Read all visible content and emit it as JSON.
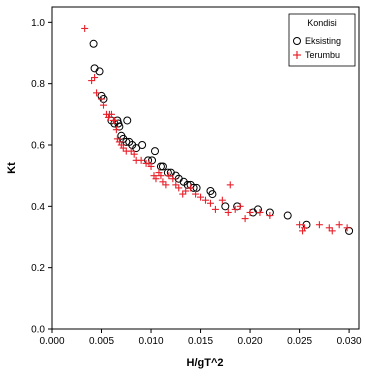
{
  "chart_data": {
    "type": "scatter",
    "title": "",
    "xlabel": "H/gT^2",
    "ylabel": "Kt",
    "xlim": [
      0.0,
      0.031
    ],
    "ylim": [
      0.0,
      1.05
    ],
    "x_ticks": [
      "0.000",
      "0.005",
      "0.010",
      "0.015",
      "0.020",
      "0.025",
      "0.030"
    ],
    "y_ticks": [
      "0.0",
      "0.2",
      "0.4",
      "0.6",
      "0.8",
      "1.0"
    ],
    "grid": false,
    "legend": {
      "title": "Kondisi",
      "position": "top-right"
    },
    "series": [
      {
        "name": "Eksisting",
        "marker": "open-circle",
        "color": "#000000",
        "points": [
          [
            0.0042,
            0.93
          ],
          [
            0.0043,
            0.85
          ],
          [
            0.0048,
            0.84
          ],
          [
            0.005,
            0.76
          ],
          [
            0.0052,
            0.75
          ],
          [
            0.006,
            0.68
          ],
          [
            0.0063,
            0.67
          ],
          [
            0.0066,
            0.68
          ],
          [
            0.0067,
            0.67
          ],
          [
            0.0068,
            0.66
          ],
          [
            0.007,
            0.63
          ],
          [
            0.0072,
            0.62
          ],
          [
            0.0075,
            0.61
          ],
          [
            0.0076,
            0.68
          ],
          [
            0.0078,
            0.61
          ],
          [
            0.0081,
            0.6
          ],
          [
            0.0085,
            0.59
          ],
          [
            0.0091,
            0.6
          ],
          [
            0.0097,
            0.55
          ],
          [
            0.0101,
            0.55
          ],
          [
            0.0104,
            0.58
          ],
          [
            0.011,
            0.53
          ],
          [
            0.0112,
            0.53
          ],
          [
            0.0117,
            0.51
          ],
          [
            0.012,
            0.51
          ],
          [
            0.0125,
            0.5
          ],
          [
            0.0128,
            0.49
          ],
          [
            0.0133,
            0.48
          ],
          [
            0.0137,
            0.47
          ],
          [
            0.014,
            0.47
          ],
          [
            0.0143,
            0.46
          ],
          [
            0.0146,
            0.46
          ],
          [
            0.016,
            0.45
          ],
          [
            0.0162,
            0.44
          ],
          [
            0.0175,
            0.4
          ],
          [
            0.0187,
            0.4
          ],
          [
            0.0203,
            0.38
          ],
          [
            0.0208,
            0.39
          ],
          [
            0.022,
            0.38
          ],
          [
            0.0238,
            0.37
          ],
          [
            0.0257,
            0.34
          ],
          [
            0.03,
            0.32
          ]
        ]
      },
      {
        "name": "Terumbu",
        "marker": "plus",
        "color": "#e8202a",
        "points": [
          [
            0.0033,
            0.98
          ],
          [
            0.004,
            0.81
          ],
          [
            0.0043,
            0.82
          ],
          [
            0.0045,
            0.77
          ],
          [
            0.005,
            0.75
          ],
          [
            0.0052,
            0.73
          ],
          [
            0.0055,
            0.7
          ],
          [
            0.0057,
            0.69
          ],
          [
            0.0058,
            0.7
          ],
          [
            0.006,
            0.7
          ],
          [
            0.0062,
            0.68
          ],
          [
            0.0063,
            0.68
          ],
          [
            0.0065,
            0.65
          ],
          [
            0.0066,
            0.62
          ],
          [
            0.0068,
            0.61
          ],
          [
            0.007,
            0.6
          ],
          [
            0.0072,
            0.59
          ],
          [
            0.0075,
            0.58
          ],
          [
            0.008,
            0.58
          ],
          [
            0.0083,
            0.57
          ],
          [
            0.0085,
            0.55
          ],
          [
            0.009,
            0.55
          ],
          [
            0.0095,
            0.54
          ],
          [
            0.0098,
            0.54
          ],
          [
            0.01,
            0.53
          ],
          [
            0.0103,
            0.5
          ],
          [
            0.0105,
            0.49
          ],
          [
            0.0108,
            0.51
          ],
          [
            0.011,
            0.5
          ],
          [
            0.0112,
            0.48
          ],
          [
            0.0115,
            0.47
          ],
          [
            0.0118,
            0.5
          ],
          [
            0.0122,
            0.49
          ],
          [
            0.0125,
            0.47
          ],
          [
            0.0128,
            0.46
          ],
          [
            0.0132,
            0.44
          ],
          [
            0.0135,
            0.45
          ],
          [
            0.014,
            0.46
          ],
          [
            0.0145,
            0.44
          ],
          [
            0.015,
            0.43
          ],
          [
            0.0155,
            0.42
          ],
          [
            0.016,
            0.41
          ],
          [
            0.0165,
            0.39
          ],
          [
            0.0172,
            0.42
          ],
          [
            0.0178,
            0.38
          ],
          [
            0.018,
            0.47
          ],
          [
            0.0185,
            0.39
          ],
          [
            0.019,
            0.4
          ],
          [
            0.0195,
            0.36
          ],
          [
            0.02,
            0.38
          ],
          [
            0.021,
            0.38
          ],
          [
            0.022,
            0.37
          ],
          [
            0.025,
            0.34
          ],
          [
            0.0253,
            0.32
          ],
          [
            0.0255,
            0.33
          ],
          [
            0.027,
            0.34
          ],
          [
            0.028,
            0.33
          ],
          [
            0.0283,
            0.32
          ],
          [
            0.029,
            0.34
          ],
          [
            0.0298,
            0.33
          ]
        ]
      }
    ]
  }
}
